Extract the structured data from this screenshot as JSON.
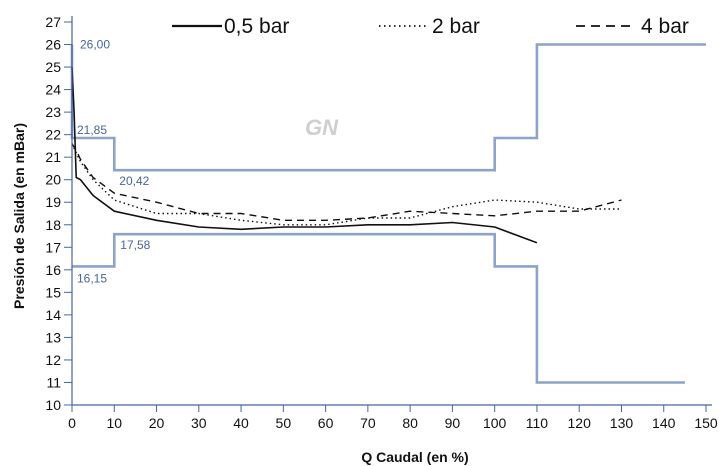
{
  "chart_data": {
    "type": "line",
    "title": "",
    "watermark": "GN",
    "xlabel": "Q Caudal (en %)",
    "ylabel": "Presión de Salida (en mBar)",
    "xlim": [
      0,
      150
    ],
    "ylim": [
      10,
      27
    ],
    "xticks": [
      0,
      10,
      20,
      30,
      40,
      50,
      60,
      70,
      80,
      90,
      100,
      110,
      120,
      130,
      140,
      150
    ],
    "yticks": [
      10,
      11,
      12,
      13,
      14,
      15,
      16,
      17,
      18,
      19,
      20,
      21,
      22,
      23,
      24,
      25,
      26,
      27
    ],
    "legend_position": "top",
    "band_color": "#8ea3c8",
    "band_label_color": "#4a64a0",
    "series": [
      {
        "name": "0,5 bar",
        "style": "solid",
        "x": [
          0,
          0.5,
          1,
          2,
          5,
          10,
          20,
          30,
          40,
          50,
          60,
          70,
          80,
          90,
          100,
          110
        ],
        "y": [
          25.0,
          23.0,
          20.1,
          20.0,
          19.3,
          18.6,
          18.2,
          17.9,
          17.8,
          17.9,
          17.9,
          18.0,
          18.0,
          18.1,
          17.9,
          17.2
        ]
      },
      {
        "name": "2 bar",
        "style": "dotted",
        "x": [
          0,
          1,
          2,
          5,
          10,
          20,
          30,
          40,
          50,
          60,
          70,
          80,
          90,
          100,
          110,
          120,
          130
        ],
        "y": [
          21.6,
          21.2,
          20.8,
          20.0,
          19.1,
          18.5,
          18.5,
          18.2,
          18.0,
          18.0,
          18.3,
          18.3,
          18.8,
          19.1,
          19.0,
          18.7,
          18.7
        ]
      },
      {
        "name": "4 bar",
        "style": "dashed",
        "x": [
          0,
          1,
          2,
          5,
          10,
          20,
          30,
          40,
          50,
          60,
          70,
          80,
          90,
          100,
          110,
          120,
          130
        ],
        "y": [
          21.6,
          21.3,
          20.9,
          20.1,
          19.4,
          19.0,
          18.5,
          18.5,
          18.2,
          18.2,
          18.3,
          18.6,
          18.5,
          18.4,
          18.6,
          18.6,
          19.1
        ]
      }
    ],
    "limits": {
      "upper": {
        "x": [
          0,
          0,
          10,
          10,
          100,
          100,
          110,
          110,
          150
        ],
        "y": [
          26.0,
          21.85,
          21.85,
          20.42,
          20.42,
          21.85,
          21.85,
          26.0,
          26.0
        ]
      },
      "lower": {
        "x": [
          0,
          0,
          10,
          10,
          100,
          100,
          110,
          110,
          145
        ],
        "y": [
          16.15,
          16.15,
          16.15,
          17.58,
          17.58,
          16.15,
          16.15,
          11.0,
          11.0
        ]
      }
    },
    "annotations": [
      {
        "text": "26,00",
        "x": 0,
        "y": 26.0
      },
      {
        "text": "21,85",
        "x": 0,
        "y": 21.85
      },
      {
        "text": "20,42",
        "x": 10,
        "y": 20.42
      },
      {
        "text": "17,58",
        "x": 10,
        "y": 17.58
      },
      {
        "text": "16,15",
        "x": 0,
        "y": 16.15
      }
    ]
  }
}
